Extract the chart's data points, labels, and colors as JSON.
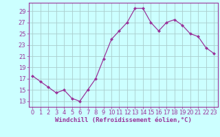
{
  "x": [
    0,
    1,
    2,
    3,
    4,
    5,
    6,
    7,
    8,
    9,
    10,
    11,
    12,
    13,
    14,
    15,
    16,
    17,
    18,
    19,
    20,
    21,
    22,
    23
  ],
  "y": [
    17.5,
    16.5,
    15.5,
    14.5,
    15.0,
    13.5,
    13.0,
    15.0,
    17.0,
    20.5,
    24.0,
    25.5,
    27.0,
    29.5,
    29.5,
    27.0,
    25.5,
    27.0,
    27.5,
    26.5,
    25.0,
    24.5,
    22.5,
    21.5
  ],
  "line_color": "#993399",
  "marker": "D",
  "markersize": 2.0,
  "linewidth": 0.9,
  "bg_color": "#ccffff",
  "grid_color": "#aacccc",
  "xlabel": "Windchill (Refroidissement éolien,°C)",
  "xlabel_fontsize": 6.5,
  "tick_fontsize": 6.0,
  "yticks": [
    13,
    15,
    17,
    19,
    21,
    23,
    25,
    27,
    29
  ],
  "ylim": [
    12.0,
    30.5
  ],
  "xlim": [
    -0.5,
    23.5
  ],
  "xticks": [
    0,
    1,
    2,
    3,
    4,
    5,
    6,
    7,
    8,
    9,
    10,
    11,
    12,
    13,
    14,
    15,
    16,
    17,
    18,
    19,
    20,
    21,
    22,
    23
  ]
}
